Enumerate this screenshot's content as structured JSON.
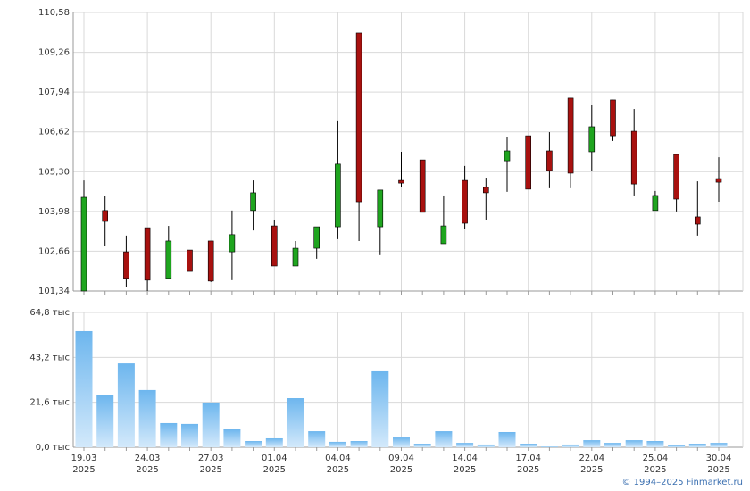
{
  "chart_data": [
    {
      "type": "candlestick",
      "up_color": "#1fa51f",
      "down_color": "#a8110f",
      "outline": "#000000",
      "grid": true,
      "ylim": [
        101.34,
        110.58
      ],
      "yticks": [
        {
          "value": 101.34,
          "label": "101,34"
        },
        {
          "value": 102.66,
          "label": "102,66"
        },
        {
          "value": 103.98,
          "label": "103,98"
        },
        {
          "value": 105.3,
          "label": "105,30"
        },
        {
          "value": 106.62,
          "label": "106,62"
        },
        {
          "value": 107.94,
          "label": "107,94"
        },
        {
          "value": 109.26,
          "label": "109,26"
        },
        {
          "value": 110.58,
          "label": "110,58"
        }
      ],
      "open": [
        101.34,
        104.01,
        102.64,
        103.44,
        101.76,
        102.7,
        103.0,
        102.64,
        104.01,
        103.5,
        102.17,
        102.76,
        103.47,
        109.9,
        103.47,
        105.01,
        105.69,
        102.91,
        105.01,
        104.78,
        105.66,
        106.49,
        105.99,
        107.74,
        105.96,
        107.68,
        106.64,
        104.01,
        105.87,
        103.8,
        105.07
      ],
      "high": [
        105.01,
        104.48,
        103.18,
        103.44,
        103.5,
        102.7,
        103.0,
        104.01,
        105.01,
        103.71,
        103.0,
        103.47,
        107.0,
        109.9,
        104.69,
        105.96,
        105.69,
        104.51,
        105.49,
        105.1,
        106.46,
        106.49,
        106.61,
        107.74,
        107.5,
        107.68,
        107.38,
        104.66,
        105.87,
        104.98,
        105.78
      ],
      "low": [
        101.34,
        102.82,
        101.46,
        101.34,
        101.76,
        101.99,
        101.64,
        101.7,
        103.35,
        102.17,
        102.17,
        102.41,
        103.06,
        103.0,
        102.53,
        104.78,
        103.95,
        102.91,
        103.41,
        103.71,
        104.63,
        104.72,
        104.75,
        104.75,
        105.31,
        106.32,
        104.51,
        104.01,
        103.98,
        103.18,
        104.3
      ],
      "close": [
        104.45,
        103.65,
        101.76,
        101.7,
        103.0,
        101.99,
        101.67,
        103.21,
        104.6,
        102.17,
        102.76,
        103.47,
        105.55,
        104.3,
        104.69,
        104.92,
        103.95,
        103.5,
        103.59,
        104.6,
        105.99,
        104.72,
        105.34,
        105.25,
        106.79,
        106.49,
        104.89,
        104.51,
        104.39,
        103.56,
        104.95
      ]
    },
    {
      "type": "bar",
      "color_top": "#6db6ee",
      "color_bottom": "#d3e9fb",
      "grid": true,
      "ylim": [
        0,
        64.8
      ],
      "yticks": [
        {
          "value": 0,
          "label": "0,0 тыс"
        },
        {
          "value": 21.6,
          "label": "21,6 тыс"
        },
        {
          "value": 43.2,
          "label": "43,2 тыс"
        },
        {
          "value": 64.8,
          "label": "64,8 тыс"
        }
      ],
      "categories": [
        [
          "19.03",
          "2025"
        ],
        null,
        null,
        [
          "24.03",
          "2025"
        ],
        null,
        null,
        [
          "27.03",
          "2025"
        ],
        null,
        null,
        [
          "01.04",
          "2025"
        ],
        null,
        null,
        [
          "04.04",
          "2025"
        ],
        null,
        null,
        [
          "09.04",
          "2025"
        ],
        null,
        null,
        [
          "14.04",
          "2025"
        ],
        null,
        null,
        [
          "17.04",
          "2025"
        ],
        null,
        null,
        [
          "22.04",
          "2025"
        ],
        null,
        null,
        [
          "25.04",
          "2025"
        ],
        null,
        null,
        [
          "30.04",
          "2025"
        ]
      ],
      "values": [
        55.8,
        24.9,
        40.3,
        27.5,
        11.6,
        11.2,
        21.5,
        8.6,
        3.0,
        4.3,
        23.6,
        7.7,
        2.6,
        3.0,
        36.5,
        4.7,
        1.7,
        7.7,
        2.1,
        1.3,
        7.3,
        1.7,
        0.4,
        1.3,
        3.4,
        2.1,
        3.4,
        3.0,
        0.9,
        1.7,
        2.1
      ]
    }
  ],
  "footer": "© 1994–2025 Finmarket.ru"
}
